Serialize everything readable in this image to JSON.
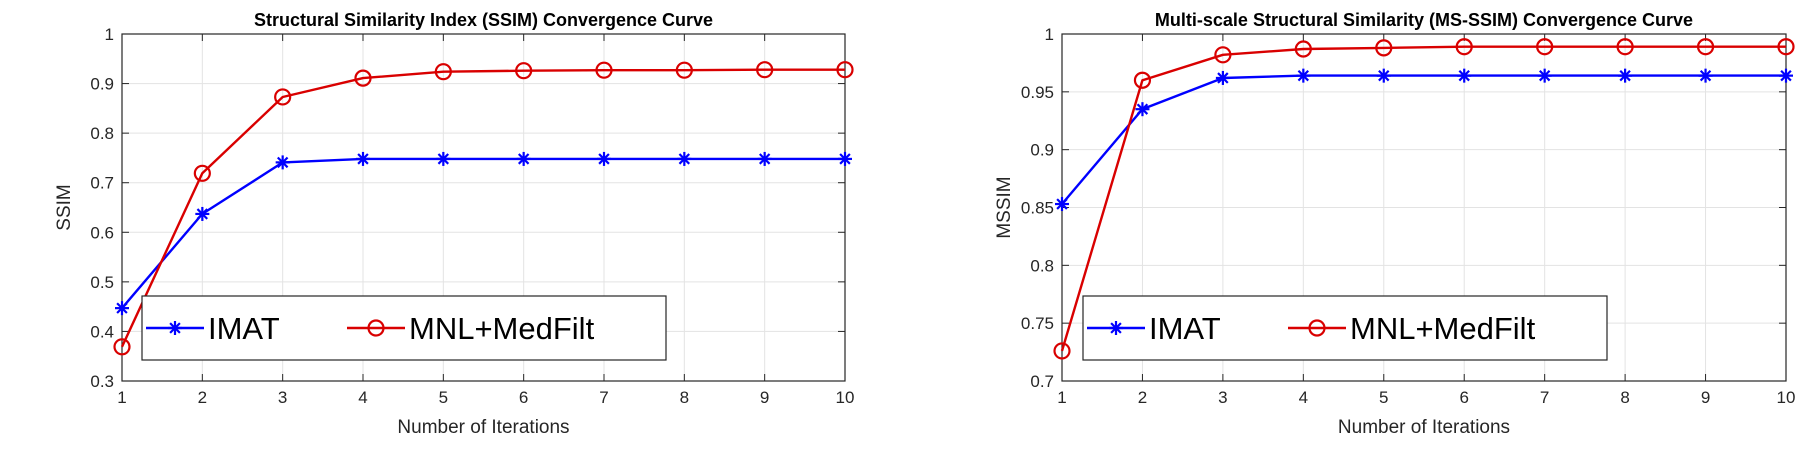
{
  "chart_data": [
    {
      "type": "line",
      "title": "Structural Similarity Index (SSIM) Convergence Curve",
      "xlabel": "Number of Iterations",
      "ylabel": "SSIM",
      "xlim": [
        1,
        10
      ],
      "ylim": [
        0.3,
        1
      ],
      "grid": true,
      "legend_position": "bottom-left",
      "xticks": [
        "1",
        "2",
        "3",
        "4",
        "5",
        "6",
        "7",
        "8",
        "9",
        "10"
      ],
      "yticks": [
        "0.3",
        "0.4",
        "0.5",
        "0.6",
        "0.7",
        "0.8",
        "0.9",
        "1"
      ],
      "x": [
        1,
        2,
        3,
        4,
        5,
        6,
        7,
        8,
        9,
        10
      ],
      "series": [
        {
          "name": "IMAT",
          "color": "#0000ff",
          "marker": "star",
          "values": [
            0.447,
            0.637,
            0.741,
            0.748,
            0.748,
            0.748,
            0.748,
            0.748,
            0.748,
            0.748
          ]
        },
        {
          "name": "MNL+MedFilt",
          "color": "#d90000",
          "marker": "circle",
          "values": [
            0.369,
            0.719,
            0.873,
            0.911,
            0.924,
            0.926,
            0.927,
            0.927,
            0.928,
            0.928
          ]
        }
      ]
    },
    {
      "type": "line",
      "title": "Multi-scale Structural Similarity (MS-SSIM) Convergence Curve",
      "xlabel": "Number of Iterations",
      "ylabel": "MSSIM",
      "xlim": [
        1,
        10
      ],
      "ylim": [
        0.7,
        1
      ],
      "grid": true,
      "legend_position": "bottom-left",
      "xticks": [
        "1",
        "2",
        "3",
        "4",
        "5",
        "6",
        "7",
        "8",
        "9",
        "10"
      ],
      "yticks": [
        "0.7",
        "0.75",
        "0.8",
        "0.85",
        "0.9",
        "0.95",
        "1"
      ],
      "x": [
        1,
        2,
        3,
        4,
        5,
        6,
        7,
        8,
        9,
        10
      ],
      "series": [
        {
          "name": "IMAT",
          "color": "#0000ff",
          "marker": "star",
          "values": [
            0.853,
            0.935,
            0.962,
            0.964,
            0.964,
            0.964,
            0.964,
            0.964,
            0.964,
            0.964
          ]
        },
        {
          "name": "MNL+MedFilt",
          "color": "#d90000",
          "marker": "circle",
          "values": [
            0.726,
            0.96,
            0.982,
            0.987,
            0.988,
            0.989,
            0.989,
            0.989,
            0.989,
            0.989
          ]
        }
      ]
    }
  ]
}
